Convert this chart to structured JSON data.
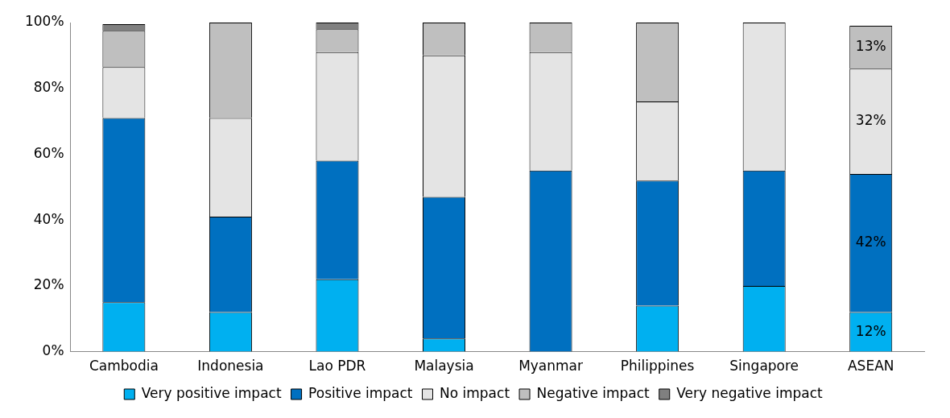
{
  "chart_data": {
    "type": "bar",
    "stacked": true,
    "categories": [
      "Cambodia",
      "Indonesia",
      "Lao PDR",
      "Malaysia",
      "Myanmar",
      "Philippines",
      "Singapore",
      "ASEAN"
    ],
    "series": [
      {
        "name": "Very positive impact",
        "color": "#00b0f0",
        "values": [
          15,
          12,
          22,
          4,
          0,
          14,
          20,
          12
        ],
        "value_labels": [
          null,
          null,
          null,
          null,
          null,
          null,
          null,
          "12%"
        ]
      },
      {
        "name": "Positive impact",
        "color": "#0070c0",
        "values": [
          56,
          29,
          36,
          43,
          55,
          38,
          35,
          42
        ],
        "value_labels": [
          null,
          null,
          null,
          null,
          null,
          null,
          null,
          "42%"
        ]
      },
      {
        "name": "No impact",
        "color": "#e4e4e4",
        "values": [
          15.5,
          30,
          33,
          43,
          36,
          24,
          45,
          32
        ],
        "value_labels": [
          null,
          null,
          null,
          null,
          null,
          null,
          null,
          "32%"
        ]
      },
      {
        "name": "Negative impact",
        "color": "#bfbfbf",
        "values": [
          11,
          29,
          7,
          10,
          9,
          24,
          0,
          13
        ],
        "value_labels": [
          null,
          null,
          null,
          null,
          null,
          null,
          null,
          "13%"
        ]
      },
      {
        "name": "Very negative impact",
        "color": "#808080",
        "values": [
          2,
          0,
          2,
          0,
          0,
          0,
          0,
          0
        ]
      }
    ],
    "ylim": [
      0,
      100
    ],
    "yticks": [
      {
        "value": 0,
        "label": "0%"
      },
      {
        "value": 20,
        "label": "20%"
      },
      {
        "value": 40,
        "label": "40%"
      },
      {
        "value": 60,
        "label": "60%"
      },
      {
        "value": 80,
        "label": "80%"
      },
      {
        "value": 100,
        "label": "100%"
      }
    ],
    "grid": false,
    "legend": "bottom"
  }
}
